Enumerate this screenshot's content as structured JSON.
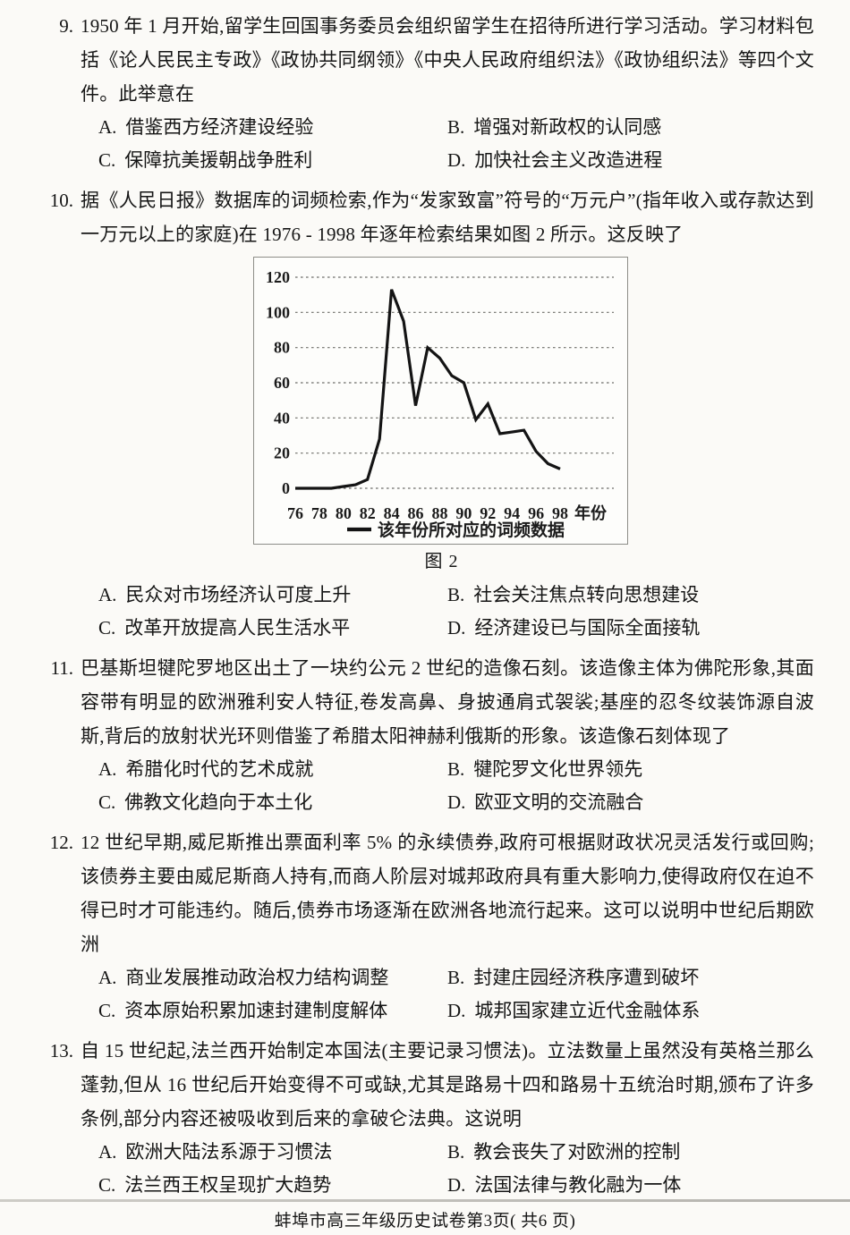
{
  "page": {
    "footer": "蚌埠市高三年级历史试卷第3页( 共6 页)"
  },
  "figure": {
    "caption": "图 2"
  },
  "questions": [
    {
      "number": "9.",
      "stem": "1950 年 1 月开始,留学生回国事务委员会组织留学生在招待所进行学习活动。学习材料包括《论人民民主专政》《政协共同纲领》《中央人民政府组织法》《政协组织法》等四个文件。此举意在",
      "options": [
        {
          "label": "A.",
          "text": "借鉴西方经济建设经验"
        },
        {
          "label": "B.",
          "text": "增强对新政权的认同感"
        },
        {
          "label": "C.",
          "text": "保障抗美援朝战争胜利"
        },
        {
          "label": "D.",
          "text": "加快社会主义改造进程"
        }
      ]
    },
    {
      "number": "10.",
      "stem": "据《人民日报》数据库的词频检索,作为“发家致富”符号的“万元户”(指年收入或存款达到一万元以上的家庭)在 1976 - 1998 年逐年检索结果如图 2 所示。这反映了",
      "options": [
        {
          "label": "A.",
          "text": "民众对市场经济认可度上升"
        },
        {
          "label": "B.",
          "text": "社会关注焦点转向思想建设"
        },
        {
          "label": "C.",
          "text": "改革开放提高人民生活水平"
        },
        {
          "label": "D.",
          "text": "经济建设已与国际全面接轨"
        }
      ]
    },
    {
      "number": "11.",
      "stem": "巴基斯坦犍陀罗地区出土了一块约公元 2 世纪的造像石刻。该造像主体为佛陀形象,其面容带有明显的欧洲雅利安人特征,卷发高鼻、身披通肩式袈裟;基座的忍冬纹装饰源自波斯,背后的放射状光环则借鉴了希腊太阳神赫利俄斯的形象。该造像石刻体现了",
      "options": [
        {
          "label": "A.",
          "text": "希腊化时代的艺术成就"
        },
        {
          "label": "B.",
          "text": "犍陀罗文化世界领先"
        },
        {
          "label": "C.",
          "text": "佛教文化趋向于本土化"
        },
        {
          "label": "D.",
          "text": "欧亚文明的交流融合"
        }
      ]
    },
    {
      "number": "12.",
      "stem": "12 世纪早期,威尼斯推出票面利率 5% 的永续债券,政府可根据财政状况灵活发行或回购;该债券主要由威尼斯商人持有,而商人阶层对城邦政府具有重大影响力,使得政府仅在迫不得已时才可能违约。随后,债券市场逐渐在欧洲各地流行起来。这可以说明中世纪后期欧洲",
      "options": [
        {
          "label": "A.",
          "text": "商业发展推动政治权力结构调整"
        },
        {
          "label": "B.",
          "text": "封建庄园经济秩序遭到破坏"
        },
        {
          "label": "C.",
          "text": "资本原始积累加速封建制度解体"
        },
        {
          "label": "D.",
          "text": "城邦国家建立近代金融体系"
        }
      ]
    },
    {
      "number": "13.",
      "stem": "自 15 世纪起,法兰西开始制定本国法(主要记录习惯法)。立法数量上虽然没有英格兰那么蓬勃,但从 16 世纪后开始变得不可或缺,尤其是路易十四和路易十五统治时期,颁布了许多条例,部分内容还被吸收到后来的拿破仑法典。这说明",
      "options": [
        {
          "label": "A.",
          "text": "欧洲大陆法系源于习惯法"
        },
        {
          "label": "B.",
          "text": "教会丧失了对欧洲的控制"
        },
        {
          "label": "C.",
          "text": "法兰西王权呈现扩大趋势"
        },
        {
          "label": "D.",
          "text": "法国法律与教化融为一体"
        }
      ]
    }
  ],
  "chart_data": {
    "type": "line",
    "title": "",
    "xlabel": "年份",
    "ylabel": "",
    "legend": "该年份所对应的词频数据",
    "legend_position": "bottom",
    "grid": "horizontal-dashed",
    "x": [
      1976,
      1977,
      1978,
      1979,
      1980,
      1981,
      1982,
      1983,
      1984,
      1985,
      1986,
      1987,
      1988,
      1989,
      1990,
      1991,
      1992,
      1993,
      1994,
      1995,
      1996,
      1997,
      1998
    ],
    "values": [
      0,
      0,
      0,
      0,
      1,
      2,
      5,
      28,
      113,
      95,
      47,
      80,
      74,
      64,
      60,
      39,
      48,
      31,
      32,
      33,
      21,
      14,
      11
    ],
    "x_tick_labels": [
      "76",
      "78",
      "80",
      "82",
      "84",
      "86",
      "88",
      "90",
      "92",
      "94",
      "96",
      "98"
    ],
    "yticks": [
      0,
      20,
      40,
      60,
      80,
      100,
      120
    ],
    "ylim": [
      0,
      120
    ]
  }
}
